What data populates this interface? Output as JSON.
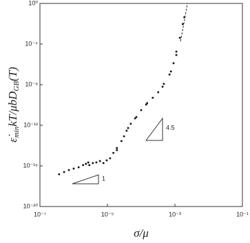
{
  "chart_data": {
    "type": "scatter",
    "xlabel": "σ/μ",
    "ylabel": [
      "ε̇",
      "min",
      "kT/μbD",
      "GB",
      "(T)"
    ],
    "annotations": [
      "1",
      "4.5"
    ],
    "xscale": "log",
    "yscale": "log",
    "xlim": [
      1e-07,
      0.1
    ],
    "ylim": [
      1e-20,
      1
    ],
    "xticks": [
      {
        "value": 1e-07,
        "label": "10⁻⁷"
      },
      {
        "value": 1e-05,
        "label": "10⁻⁵"
      },
      {
        "value": 0.001,
        "label": "10⁻³"
      },
      {
        "value": 0.1,
        "label": "10⁻¹"
      }
    ],
    "yticks": [
      {
        "value": 1e-20,
        "label": "10⁻²⁰"
      },
      {
        "value": 1e-16,
        "label": "10⁻¹⁶"
      },
      {
        "value": 1e-12,
        "label": "10⁻¹²"
      },
      {
        "value": 1e-08,
        "label": "10⁻⁸"
      },
      {
        "value": 0.0001,
        "label": "10⁻⁴"
      },
      {
        "value": 1,
        "label": "10⁰"
      }
    ],
    "color": "#111111",
    "x": [
      3.7e-07,
      5.2e-07,
      7.2e-07,
      1e-06,
      1.4e-06,
      1.9e-06,
      2.3e-06,
      2.9e-06,
      3.7e-06,
      4.7e-06,
      6e-06,
      7.6e-06,
      9.5e-06,
      1.2e-05,
      1.5e-05,
      1.9e-05,
      2.6e-05,
      3.1e-05,
      4.1e-05,
      4.9e-05,
      7.2e-05,
      0.0001,
      0.00015,
      0.00022,
      0.00032,
      0.00047,
      0.00069,
      0.00091,
      0.0011,
      0.0014,
      0.0017,
      0.0019,
      0.0011,
      0.00076,
      0.00043,
      0.00014,
      6.6e-05,
      3.7e-05,
      1.9e-05,
      2.7e-06
    ],
    "values": [
      1.5e-17,
      2.5e-17,
      3.9e-17,
      5.4e-17,
      7.3e-17,
      1.2e-16,
      1.6e-16,
      1.2e-16,
      1.9e-16,
      2.2e-16,
      3e-16,
      1.9e-16,
      3.5e-16,
      5.6e-16,
      1.9e-15,
      5.8e-15,
      2.8e-14,
      8.2e-14,
      5.4e-13,
      1.4e-12,
      6.5e-12,
      3.1e-11,
      1.5e-10,
      5.1e-10,
      1.8e-09,
      1.2e-08,
      1e-07,
      1.3e-06,
      1.8e-05,
      0.00041,
      0.0093,
      0.044,
      8.3e-06,
      2e-07,
      6.3e-09,
      1.1e-10,
      4.8e-12,
      2.9e-13,
      3.6e-15,
      2.2e-16
    ]
  }
}
